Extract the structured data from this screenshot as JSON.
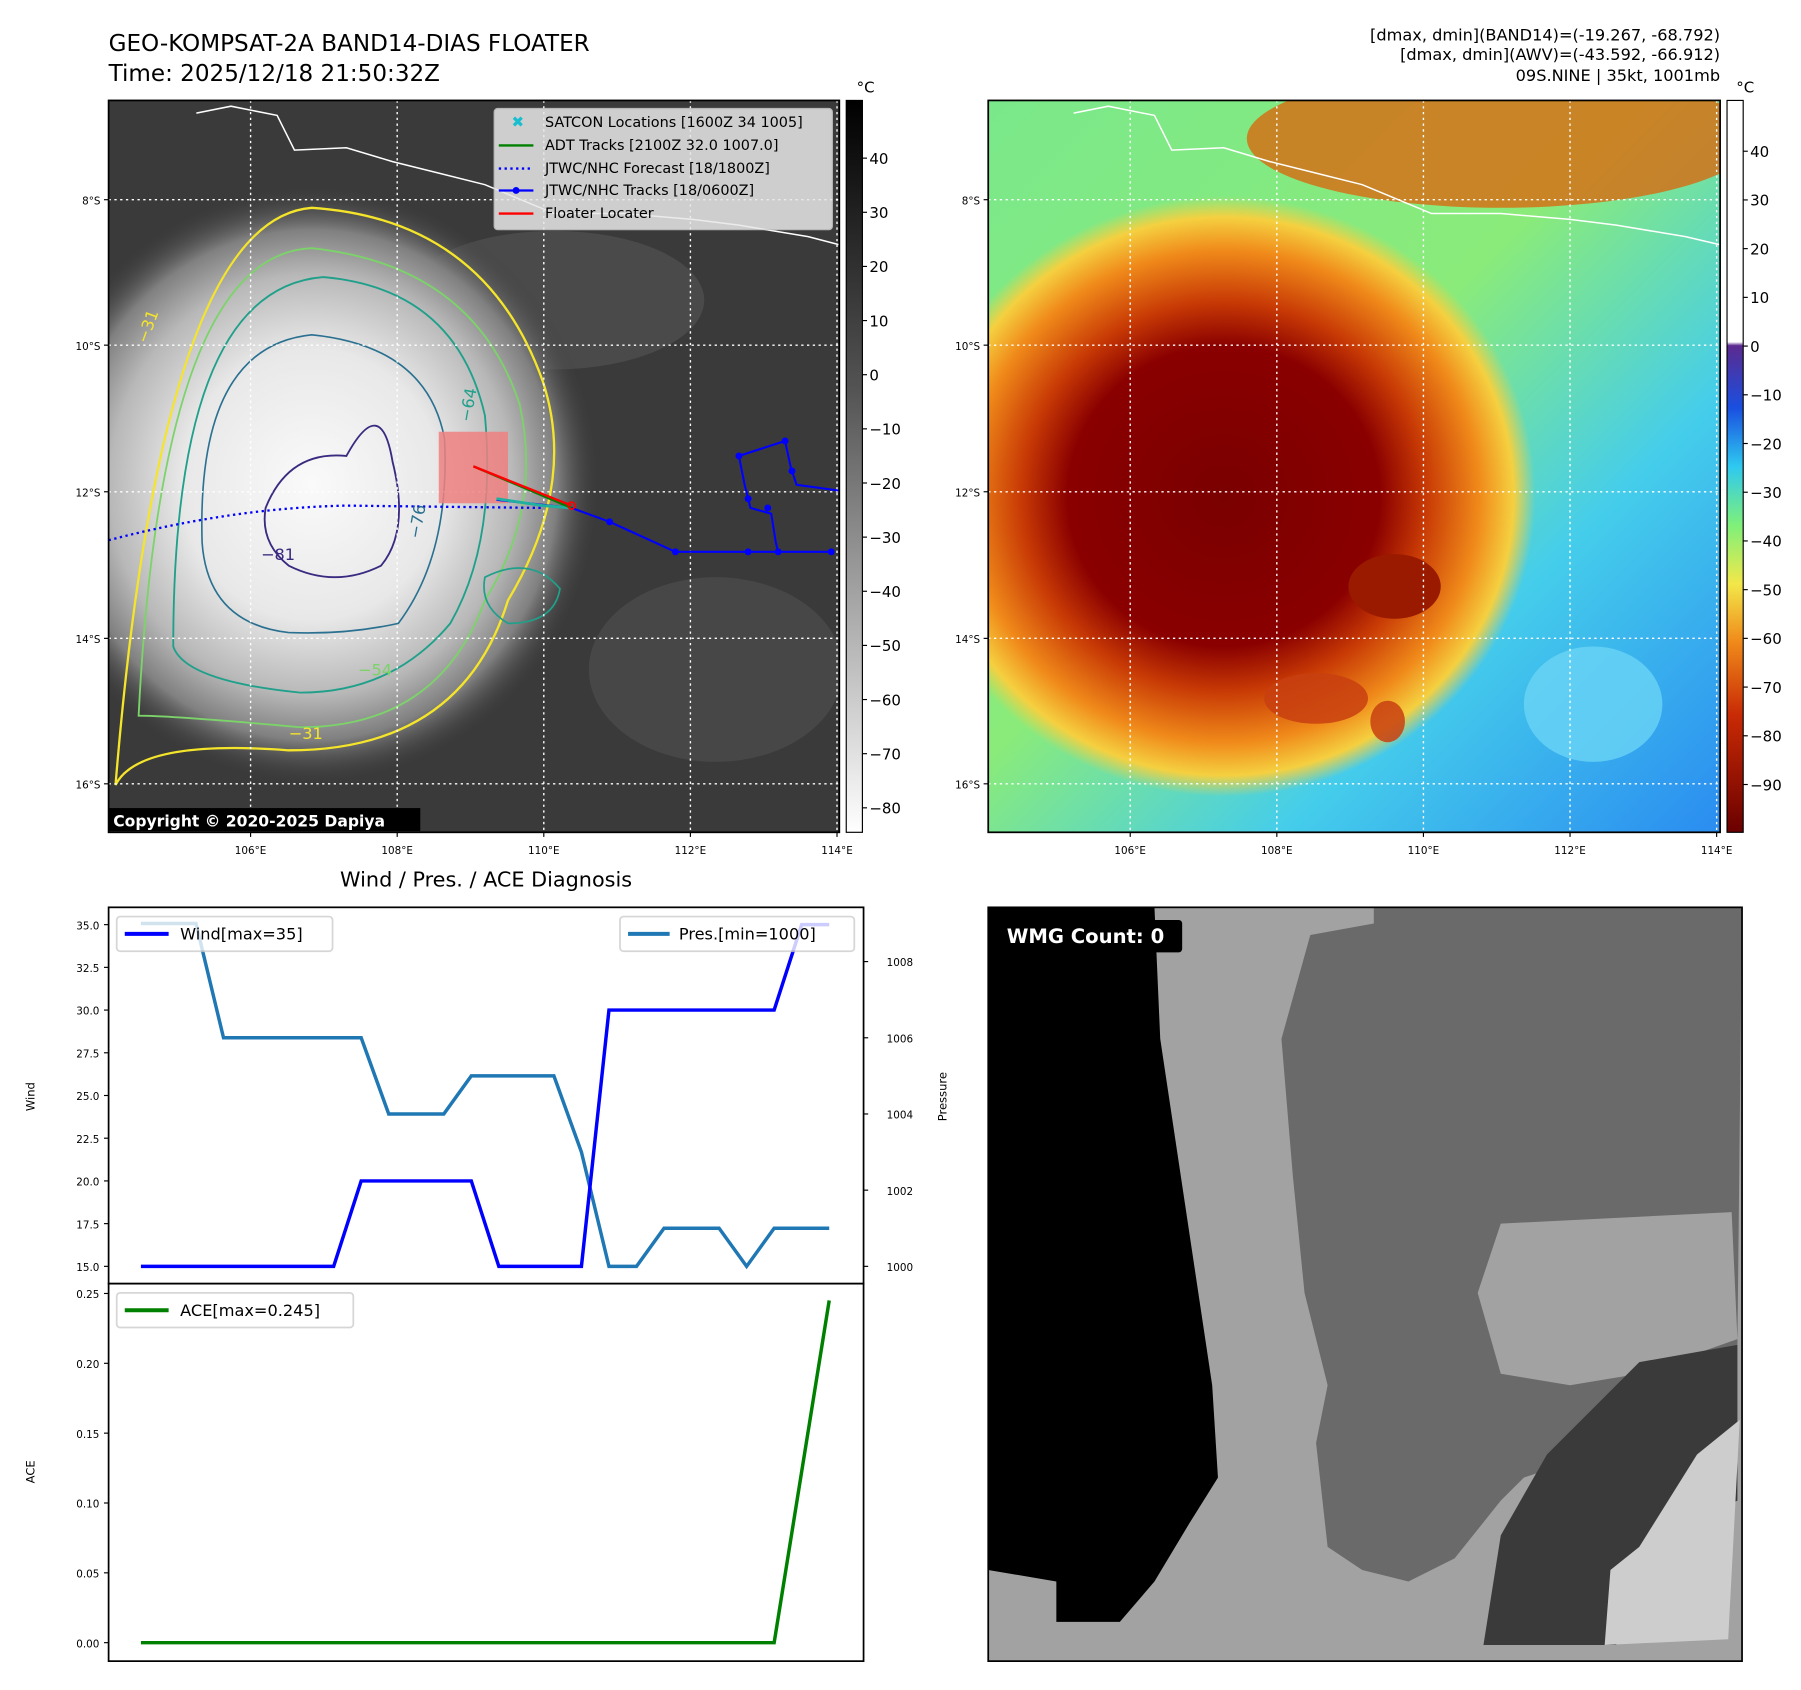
{
  "header": {
    "title_line1": "GEO-KOMPSAT-2A BAND14-DIAS FLOATER",
    "title_line2": "Time: 2025/12/18 21:50:32Z",
    "info_line1": "[dmax, dmin](BAND14)=(-19.267, -68.792)",
    "info_line2": "[dmax, dmin](AWV)=(-43.592, -66.912)",
    "info_line3": "09S.NINE | 35kt, 1001mb"
  },
  "map": {
    "lon_ticks": [
      "106°E",
      "108°E",
      "110°E",
      "112°E",
      "114°E"
    ],
    "lat_ticks": [
      "8°S",
      "10°S",
      "12°S",
      "14°S",
      "16°S"
    ],
    "unit": "°C",
    "left_colorbar_ticks": [
      "40",
      "30",
      "20",
      "10",
      "0",
      "−10",
      "−20",
      "−30",
      "−40",
      "−50",
      "−60",
      "−70",
      "−80"
    ],
    "right_colorbar_ticks": [
      "40",
      "30",
      "20",
      "10",
      "0",
      "−10",
      "−20",
      "−30",
      "−40",
      "−50",
      "−60",
      "−70",
      "−80",
      "−90"
    ],
    "contour_labels": [
      "−81",
      "−76",
      "−64",
      "−54",
      "−31",
      "−31"
    ],
    "copyright": "Copyright © 2020-2025 Dapiya",
    "legend": [
      {
        "label": "SATCON Locations [1600Z 34 1005]",
        "color": "#17becf"
      },
      {
        "label": "ADT Tracks [2100Z 32.0 1007.0]",
        "color": "#008000"
      },
      {
        "label": "JTWC/NHC Forecast [18/1800Z]",
        "color": "#0000ff"
      },
      {
        "label": "JTWC/NHC Tracks [18/0600Z]",
        "color": "#0000ff"
      },
      {
        "label": "Floater Locater",
        "color": "#ff0000"
      }
    ]
  },
  "wmg": {
    "label": "WMG Count: 0"
  },
  "chart_data": [
    {
      "type": "line",
      "title": "Wind / Pres. / ACE Diagnosis",
      "xlabel": "",
      "ylabel": "Wind",
      "y2label": "Pressure",
      "ylim": [
        14.5,
        35.5
      ],
      "y2lim": [
        999.5,
        1009.4
      ],
      "yticks": [
        "15.0",
        "17.5",
        "20.0",
        "22.5",
        "25.0",
        "27.5",
        "30.0",
        "32.5",
        "35.0"
      ],
      "y2ticks": [
        "1000",
        "1002",
        "1004",
        "1006",
        "1008"
      ],
      "x": [
        0,
        1,
        2,
        3,
        4,
        5,
        6,
        7,
        8,
        9,
        10,
        11,
        12,
        13,
        14,
        15,
        16,
        17,
        18,
        19,
        20,
        21,
        22,
        23,
        24,
        25
      ],
      "series": [
        {
          "name": "Wind[max=35]",
          "color": "#0000ff",
          "axis": "left",
          "values": [
            15,
            15,
            15,
            15,
            15,
            15,
            15,
            15,
            20,
            20,
            20,
            20,
            20,
            15,
            15,
            15,
            15,
            30,
            30,
            30,
            30,
            30,
            30,
            30,
            35,
            35
          ]
        },
        {
          "name": "Pres.[min=1000]",
          "color": "#1f77b4",
          "axis": "right",
          "values": [
            1009,
            1009,
            1009,
            1006,
            1006,
            1006,
            1006,
            1006,
            1006,
            1004,
            1004,
            1004,
            1005,
            1005,
            1005,
            1005,
            1003,
            1000,
            1000,
            1001,
            1001,
            1001,
            1000,
            1001,
            1001,
            1001
          ]
        }
      ]
    },
    {
      "type": "line",
      "ylabel": "ACE",
      "ylim": [
        -0.012,
        0.25
      ],
      "yticks": [
        "0.00",
        "0.05",
        "0.10",
        "0.15",
        "0.20",
        "0.25"
      ],
      "x": [
        0,
        1,
        2,
        3,
        4,
        5,
        6,
        7,
        8,
        9,
        10,
        11,
        12,
        13,
        14,
        15,
        16,
        17,
        18,
        19,
        20,
        21,
        22,
        23,
        24,
        25
      ],
      "series": [
        {
          "name": "ACE[max=0.245]",
          "color": "#008000",
          "values": [
            0,
            0,
            0,
            0,
            0,
            0,
            0,
            0,
            0,
            0,
            0,
            0,
            0,
            0,
            0,
            0,
            0,
            0,
            0,
            0,
            0,
            0,
            0,
            0,
            0.12,
            0.245
          ]
        }
      ]
    }
  ]
}
